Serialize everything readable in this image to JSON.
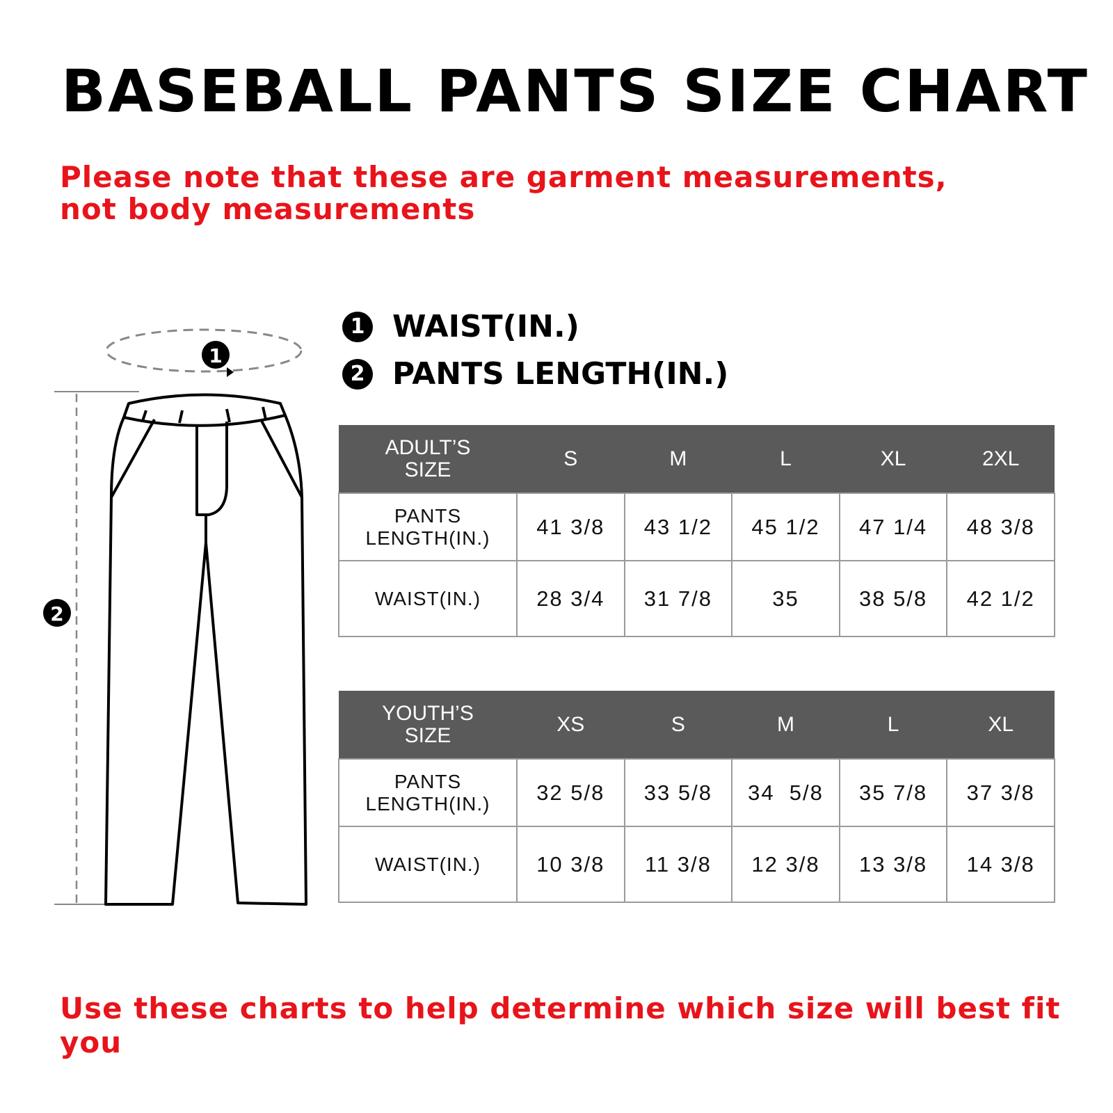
{
  "title": "BASEBALL PANTS SIZE CHART",
  "note": "Please note that these are garment measurements, not body measurements",
  "legend": [
    {
      "num": "1",
      "label": "WAIST(IN.)"
    },
    {
      "num": "2",
      "label": "PANTS LENGTH(IN.)"
    }
  ],
  "diagram": {
    "waist_marker": "1",
    "length_marker": "2"
  },
  "adult": {
    "header": [
      "ADULT’S SIZE",
      "S",
      "M",
      "L",
      "XL",
      "2XL"
    ],
    "rows": [
      [
        "PANTS LENGTH(IN.)",
        "41 3/8",
        "43 1/2",
        "45 1/2",
        "47 1/4",
        "48 3/8"
      ],
      [
        "WAIST(IN.)",
        "28 3/4",
        "31 7/8",
        "35",
        "38 5/8",
        "42 1/2"
      ]
    ]
  },
  "youth": {
    "header": [
      "YOUTH’S SIZE",
      "XS",
      "S",
      "M",
      "L",
      "XL"
    ],
    "rows": [
      [
        "PANTS LENGTH(IN.)",
        "32 5/8",
        "33 5/8",
        "34  5/8",
        "35 7/8",
        "37 3/8"
      ],
      [
        "WAIST(IN.)",
        "10 3/8",
        "11 3/8",
        "12 3/8",
        "13 3/8",
        "14 3/8"
      ]
    ]
  },
  "bottom_note": "Use these charts to help determine which size will best fit you",
  "colors": {
    "accent_red": "#e8141b",
    "header_gray": "#5a5a5a"
  }
}
